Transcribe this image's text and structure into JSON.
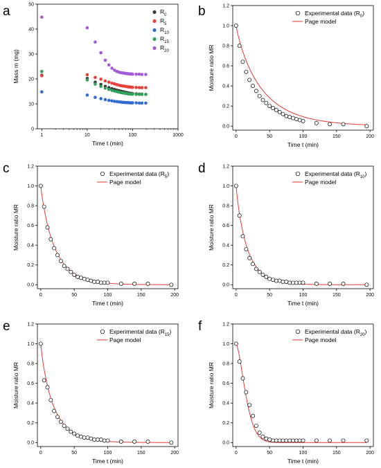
{
  "chart_data": [
    {
      "panel": "a",
      "type": "scatter",
      "xlabel": "Time t (min)",
      "ylabel": "Mass m (mg)",
      "xscale": "log",
      "xlim": [
        0.8,
        1000
      ],
      "ylim": [
        0,
        50
      ],
      "xticks": [
        1,
        10,
        100,
        1000
      ],
      "xtick_labels": [
        "1",
        "10",
        "100",
        "1000"
      ],
      "yticks": [
        0,
        10,
        20,
        30,
        40,
        50
      ],
      "ytick_labels": [
        "0",
        "10",
        "20",
        "30",
        "40",
        "50"
      ],
      "legend_position": "top-right",
      "x": [
        1,
        10,
        15,
        20,
        25,
        30,
        35,
        40,
        45,
        50,
        55,
        60,
        65,
        70,
        75,
        80,
        85,
        90,
        95,
        100,
        120,
        140,
        160,
        195
      ],
      "series": [
        {
          "name": "R",
          "sub": "0",
          "color": "#3a3a3a",
          "values": [
            21.5,
            20.2,
            18.7,
            17.8,
            17.0,
            16.5,
            16.1,
            15.8,
            15.5,
            15.3,
            15.1,
            14.9,
            14.8,
            14.6,
            14.5,
            14.4,
            14.3,
            14.2,
            14.2,
            14.1,
            14.0,
            13.9,
            13.9,
            13.8
          ]
        },
        {
          "name": "R",
          "sub": "5",
          "color": "#e8403a",
          "values": [
            21.3,
            21.7,
            20.6,
            19.9,
            19.2,
            18.7,
            18.3,
            18.0,
            17.7,
            17.5,
            17.3,
            17.2,
            17.1,
            17.0,
            16.9,
            16.8,
            16.8,
            16.7,
            16.7,
            16.6,
            16.6,
            16.5,
            16.5,
            16.5
          ]
        },
        {
          "name": "R",
          "sub": "10",
          "color": "#2f6bd1",
          "values": [
            14.8,
            13.5,
            12.6,
            12.1,
            11.7,
            11.4,
            11.2,
            11.0,
            10.9,
            10.8,
            10.7,
            10.6,
            10.6,
            10.5,
            10.5,
            10.5,
            10.4,
            10.4,
            10.4,
            10.4,
            10.4,
            10.3,
            10.3,
            10.3
          ]
        },
        {
          "name": "R",
          "sub": "15",
          "color": "#2fa35a",
          "values": [
            23.0,
            19.6,
            17.9,
            17.0,
            16.3,
            15.8,
            15.4,
            15.1,
            14.9,
            14.7,
            14.5,
            14.4,
            14.3,
            14.2,
            14.1,
            14.0,
            14.0,
            13.9,
            13.9,
            13.9,
            13.8,
            13.8,
            13.8,
            13.8
          ]
        },
        {
          "name": "R",
          "sub": "20",
          "color": "#a35ad8",
          "values": [
            44.8,
            40.5,
            34.8,
            30.5,
            27.5,
            25.6,
            24.3,
            23.5,
            23.0,
            22.7,
            22.5,
            22.4,
            22.3,
            22.2,
            22.1,
            22.1,
            22.0,
            22.0,
            22.0,
            21.9,
            21.9,
            21.9,
            21.8,
            21.8
          ]
        }
      ]
    },
    {
      "panel": "b",
      "type": "scatter+line",
      "xlabel": "Time t (min)",
      "ylabel": "Moisture ratio MR",
      "xlim": [
        -5,
        205
      ],
      "ylim": [
        -0.04,
        1.2
      ],
      "xticks": [
        0,
        50,
        100,
        150,
        200
      ],
      "xtick_labels": [
        "0",
        "50",
        "100",
        "150",
        "200"
      ],
      "yticks": [
        0,
        0.2,
        0.4,
        0.6,
        0.8,
        1.0,
        1.2
      ],
      "ytick_labels": [
        "0.0",
        "0.2",
        "0.4",
        "0.6",
        "0.8",
        "1.0",
        "1.2"
      ],
      "legend_position": "top-right",
      "legend": {
        "experimental": "Experimental data (R",
        "sub": "0",
        "experimental_close": ")",
        "model": "Page model"
      },
      "model": {
        "k": 0.0375,
        "n": 0.9
      },
      "x": [
        0,
        5,
        10,
        15,
        20,
        25,
        30,
        35,
        40,
        45,
        50,
        55,
        60,
        65,
        70,
        75,
        80,
        85,
        90,
        95,
        100,
        120,
        140,
        160,
        195
      ],
      "y": [
        1.0,
        0.8,
        0.64,
        0.54,
        0.46,
        0.4,
        0.35,
        0.3,
        0.26,
        0.23,
        0.2,
        0.18,
        0.16,
        0.14,
        0.12,
        0.1,
        0.09,
        0.08,
        0.07,
        0.06,
        0.05,
        0.03,
        0.02,
        0.02,
        0.0
      ]
    },
    {
      "panel": "c",
      "type": "scatter+line",
      "xlabel": "Time t (min)",
      "ylabel": "Moisture ratio MR",
      "xlim": [
        -5,
        205
      ],
      "ylim": [
        -0.04,
        1.2
      ],
      "xticks": [
        0,
        50,
        100,
        150,
        200
      ],
      "xtick_labels": [
        "0",
        "50",
        "100",
        "150",
        "200"
      ],
      "yticks": [
        0,
        0.2,
        0.4,
        0.6,
        0.8,
        1.0,
        1.2
      ],
      "ytick_labels": [
        "0.0",
        "0.2",
        "0.4",
        "0.6",
        "0.8",
        "1.0",
        "1.2"
      ],
      "legend_position": "top-right",
      "legend": {
        "experimental": "Experimental data (R",
        "sub": "5",
        "experimental_close": ")",
        "model": "Page model"
      },
      "model": {
        "k": 0.06,
        "n": 0.92
      },
      "x": [
        0,
        5,
        10,
        15,
        20,
        25,
        30,
        35,
        40,
        45,
        50,
        55,
        60,
        65,
        70,
        75,
        80,
        85,
        90,
        95,
        100,
        120,
        140,
        160,
        195
      ],
      "y": [
        1.0,
        0.79,
        0.58,
        0.46,
        0.37,
        0.3,
        0.24,
        0.19,
        0.16,
        0.13,
        0.1,
        0.08,
        0.07,
        0.06,
        0.05,
        0.04,
        0.03,
        0.03,
        0.02,
        0.02,
        0.02,
        0.01,
        0.01,
        0.01,
        0.0
      ]
    },
    {
      "panel": "d",
      "type": "scatter+line",
      "xlabel": "Time t (min)",
      "ylabel": "Moisture ratio MR",
      "xlim": [
        -5,
        205
      ],
      "ylim": [
        -0.04,
        1.2
      ],
      "xticks": [
        0,
        50,
        100,
        150,
        200
      ],
      "xtick_labels": [
        "0",
        "50",
        "100",
        "150",
        "200"
      ],
      "yticks": [
        0,
        0.2,
        0.4,
        0.6,
        0.8,
        1.0,
        1.2
      ],
      "ytick_labels": [
        "0.0",
        "0.2",
        "0.4",
        "0.6",
        "0.8",
        "1.0",
        "1.2"
      ],
      "legend_position": "top-right",
      "legend": {
        "experimental": "Experimental data (R",
        "sub": "10",
        "experimental_close": ")",
        "model": "Page model"
      },
      "model": {
        "k": 0.075,
        "n": 0.92
      },
      "x": [
        0,
        5,
        10,
        15,
        20,
        25,
        30,
        35,
        40,
        45,
        50,
        55,
        60,
        65,
        70,
        75,
        80,
        85,
        90,
        95,
        100,
        120,
        140,
        160,
        195
      ],
      "y": [
        1.0,
        0.7,
        0.49,
        0.36,
        0.27,
        0.21,
        0.16,
        0.13,
        0.1,
        0.08,
        0.06,
        0.05,
        0.04,
        0.04,
        0.03,
        0.03,
        0.02,
        0.02,
        0.02,
        0.02,
        0.02,
        0.01,
        0.01,
        0.01,
        0.0
      ]
    },
    {
      "panel": "e",
      "type": "scatter+line",
      "xlabel": "Time t (min)",
      "ylabel": "Moisture ratio MR",
      "xlim": [
        -5,
        205
      ],
      "ylim": [
        -0.04,
        1.2
      ],
      "xticks": [
        0,
        50,
        100,
        150,
        200
      ],
      "xtick_labels": [
        "0",
        "50",
        "100",
        "150",
        "200"
      ],
      "yticks": [
        0,
        0.2,
        0.4,
        0.6,
        0.8,
        1.0,
        1.2
      ],
      "ytick_labels": [
        "0.0",
        "0.2",
        "0.4",
        "0.6",
        "0.8",
        "1.0",
        "1.2"
      ],
      "legend_position": "top-right",
      "legend": {
        "experimental": "Experimental data (R",
        "sub": "15",
        "experimental_close": ")",
        "model": "Page model"
      },
      "model": {
        "k": 0.07,
        "n": 0.9
      },
      "x": [
        0,
        5,
        10,
        15,
        20,
        25,
        30,
        35,
        40,
        45,
        50,
        55,
        60,
        65,
        70,
        75,
        80,
        85,
        90,
        95,
        100,
        120,
        140,
        160,
        195
      ],
      "y": [
        1.0,
        0.63,
        0.56,
        0.43,
        0.32,
        0.26,
        0.21,
        0.17,
        0.14,
        0.11,
        0.09,
        0.07,
        0.06,
        0.05,
        0.05,
        0.04,
        0.03,
        0.03,
        0.03,
        0.02,
        0.02,
        0.01,
        0.01,
        0.01,
        0.0
      ]
    },
    {
      "panel": "f",
      "type": "scatter+line",
      "xlabel": "Time t (min)",
      "ylabel": "Moisture ratio MR",
      "xlim": [
        -5,
        205
      ],
      "ylim": [
        -0.04,
        1.2
      ],
      "xticks": [
        0,
        50,
        100,
        150,
        200
      ],
      "xtick_labels": [
        "0",
        "50",
        "100",
        "150",
        "200"
      ],
      "yticks": [
        0,
        0.2,
        0.4,
        0.6,
        0.8,
        1.0,
        1.2
      ],
      "ytick_labels": [
        "0.0",
        "0.2",
        "0.4",
        "0.6",
        "0.8",
        "1.0",
        "1.2"
      ],
      "legend_position": "top-right",
      "legend": {
        "experimental": "Experimental data (R",
        "sub": "20",
        "experimental_close": ")",
        "model": "Page model"
      },
      "model": {
        "k": 0.0115,
        "n": 1.55
      },
      "x": [
        0,
        5,
        10,
        15,
        20,
        25,
        30,
        35,
        40,
        45,
        50,
        55,
        60,
        65,
        70,
        75,
        80,
        85,
        90,
        95,
        100,
        120,
        140,
        160,
        195
      ],
      "y": [
        1.0,
        0.82,
        0.65,
        0.51,
        0.38,
        0.27,
        0.17,
        0.1,
        0.06,
        0.04,
        0.03,
        0.02,
        0.02,
        0.02,
        0.02,
        0.02,
        0.02,
        0.02,
        0.02,
        0.02,
        0.02,
        0.02,
        0.02,
        0.02,
        0.02
      ]
    }
  ],
  "colors": {
    "axis": "#000000",
    "marker_edge": "#000000",
    "marker_fill": "#ffffff",
    "model_line": "#e53935"
  }
}
